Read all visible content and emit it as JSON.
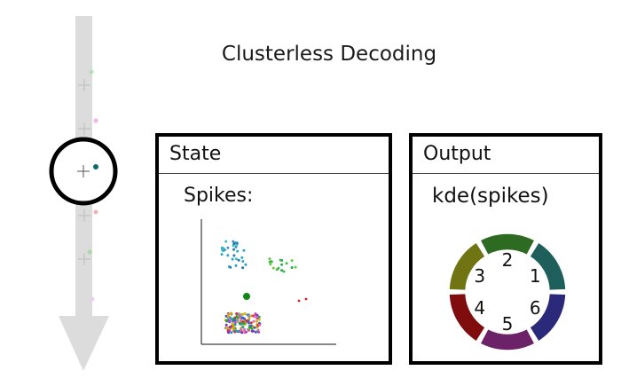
{
  "title": "Clusterless Decoding",
  "state_panel": {
    "title": "State",
    "spikes_label": "Spikes:"
  },
  "output_panel": {
    "title": "Output",
    "kde_label": "kde(spikes)",
    "segments": [
      {
        "label": "1",
        "color": "#1f5f5b"
      },
      {
        "label": "2",
        "color": "#2e6b22"
      },
      {
        "label": "3",
        "color": "#707412"
      },
      {
        "label": "4",
        "color": "#800d0d"
      },
      {
        "label": "5",
        "color": "#6b2266"
      },
      {
        "label": "6",
        "color": "#2b2a7a"
      }
    ]
  },
  "colors": {
    "track": "#dcdcdc",
    "panel_border": "#000000",
    "focus_dot": "#0f6b6b",
    "big_green_dot": "#118811"
  }
}
